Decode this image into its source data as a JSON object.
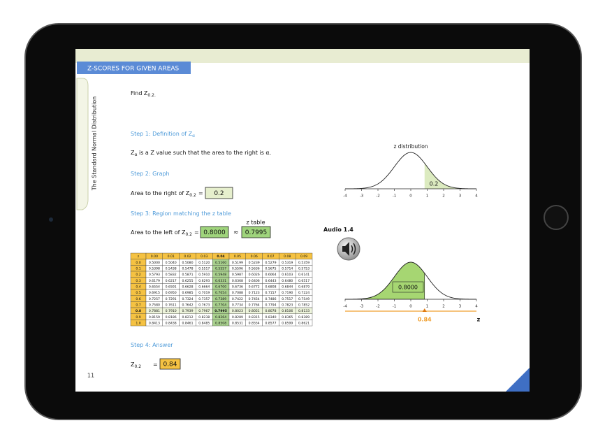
{
  "header": {
    "title": "Z-SCORES FOR GIVEN AREAS"
  },
  "sidebar": {
    "title": "The Standard Normal  Distribution",
    "page": "11"
  },
  "problem": {
    "text": "Find Z",
    "sub": "0.2."
  },
  "step1": {
    "heading": "Step 1: Definition of Z",
    "heading_sub": "α",
    "symbol": "Z",
    "symbol_sub": "α",
    "text": " is a Z value such that the area to the right is α."
  },
  "step2": {
    "heading": "Step 2: Graph",
    "label": "Area to the right of Z",
    "label_sub": "0.2",
    "eq": "=",
    "value": "0.2"
  },
  "step3": {
    "heading": "Step 3: Region matching the z table",
    "label": "Area to the left of Z",
    "label_sub": "0.2",
    "eq": "=",
    "value": "0.8000",
    "approx": "≈",
    "table_label": "z table",
    "table_value": "0.7995"
  },
  "z_table": {
    "header": [
      "z",
      "0.00",
      "0.01",
      "0.02",
      "0.03",
      "0.04",
      "0.05",
      "0.06",
      "0.07",
      "0.08",
      "0.09"
    ],
    "rows": [
      [
        "0.0",
        "0.5000",
        "0.5040",
        "0.5080",
        "0.5120",
        "0.5160",
        "0.5199",
        "0.5239",
        "0.5279",
        "0.5319",
        "0.5359"
      ],
      [
        "0.1",
        "0.5398",
        "0.5438",
        "0.5478",
        "0.5517",
        "0.5557",
        "0.5596",
        "0.5636",
        "0.5675",
        "0.5714",
        "0.5753"
      ],
      [
        "0.2",
        "0.5793",
        "0.5832",
        "0.5871",
        "0.5910",
        "0.5948",
        "0.5987",
        "0.6026",
        "0.6064",
        "0.6103",
        "0.6141"
      ],
      [
        "0.3",
        "0.6179",
        "0.6217",
        "0.6255",
        "0.6293",
        "0.6331",
        "0.6368",
        "0.6406",
        "0.6443",
        "0.6480",
        "0.6517"
      ],
      [
        "0.4",
        "0.6554",
        "0.6591",
        "0.6628",
        "0.6664",
        "0.6700",
        "0.6736",
        "0.6772",
        "0.6808",
        "0.6844",
        "0.6879"
      ],
      [
        "0.5",
        "0.6915",
        "0.6950",
        "0.6985",
        "0.7019",
        "0.7054",
        "0.7088",
        "0.7123",
        "0.7157",
        "0.7190",
        "0.7224"
      ],
      [
        "0.6",
        "0.7257",
        "0.7291",
        "0.7324",
        "0.7357",
        "0.7389",
        "0.7422",
        "0.7454",
        "0.7486",
        "0.7517",
        "0.7549"
      ],
      [
        "0.7",
        "0.7580",
        "0.7611",
        "0.7642",
        "0.7673",
        "0.7704",
        "0.7734",
        "0.7764",
        "0.7794",
        "0.7823",
        "0.7852"
      ],
      [
        "0.8",
        "0.7881",
        "0.7910",
        "0.7939",
        "0.7967",
        "0.7995",
        "0.8023",
        "0.8051",
        "0.8078",
        "0.8106",
        "0.8133"
      ],
      [
        "0.9",
        "0.8159",
        "0.8186",
        "0.8212",
        "0.8238",
        "0.8264",
        "0.8289",
        "0.8315",
        "0.8340",
        "0.8365",
        "0.8389"
      ],
      [
        "1.0",
        "0.8413",
        "0.8438",
        "0.8461",
        "0.8485",
        "0.8508",
        "0.8531",
        "0.8554",
        "0.8577",
        "0.8599",
        "0.8621"
      ]
    ]
  },
  "step4": {
    "heading": "Step 4: Answer",
    "label": "Z",
    "label_sub": "0.2",
    "eq": "=",
    "value": "0.84"
  },
  "graph1": {
    "title": "z distribution",
    "xticks": [
      -4,
      -3,
      -2,
      -1,
      0,
      1,
      2,
      3,
      4
    ],
    "area_label": "0.2"
  },
  "audio": {
    "label": "Audio 1.4"
  },
  "graph2": {
    "xticks": [
      -4,
      -3,
      -2,
      -1,
      0,
      1,
      2,
      3,
      4
    ],
    "area_label": "0.8000",
    "cutoff": 0.84,
    "axis_label": "z"
  }
}
